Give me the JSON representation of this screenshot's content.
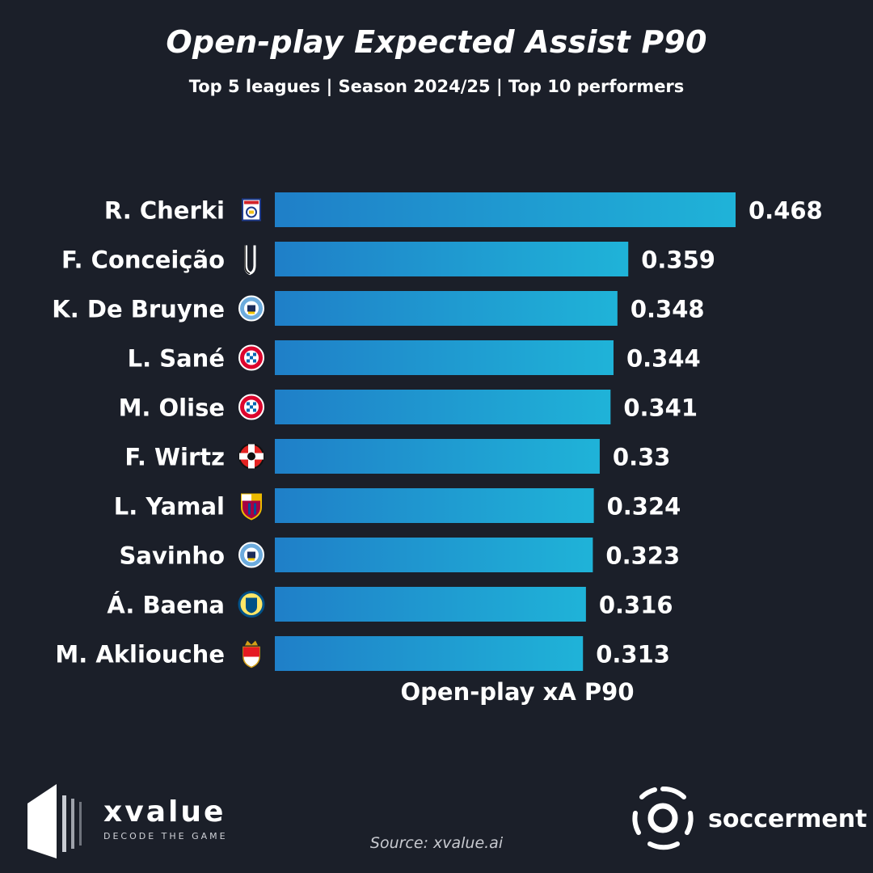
{
  "header": {
    "title": "Open-play Expected Assist P90",
    "subtitle": "Top 5 leagues | Season 2024/25 | Top 10 performers"
  },
  "chart_data": {
    "type": "bar",
    "orientation": "horizontal",
    "title": "Open-play Expected Assist P90",
    "subtitle": "Top 5 leagues | Season 2024/25 | Top 10 performers",
    "xlabel": "Open-play xA P90",
    "ylabel": "",
    "xlim": [
      0,
      0.468
    ],
    "grid": false,
    "categories": [
      "R. Cherki",
      "F. Conceição",
      "K. De Bruyne",
      "L. Sané",
      "M. Olise",
      "F. Wirtz",
      "L. Yamal",
      "Savinho",
      "Á. Baena",
      "M. Akliouche"
    ],
    "values": [
      0.468,
      0.359,
      0.348,
      0.344,
      0.341,
      0.33,
      0.324,
      0.323,
      0.316,
      0.313
    ],
    "value_labels": [
      "0.468",
      "0.359",
      "0.348",
      "0.344",
      "0.341",
      "0.33",
      "0.324",
      "0.323",
      "0.316",
      "0.313"
    ],
    "club_icons": [
      "lyon-crest-icon",
      "juventus-crest-icon",
      "man-city-crest-icon",
      "bayern-crest-icon",
      "bayern-crest-icon",
      "leverkusen-crest-icon",
      "barcelona-crest-icon",
      "man-city-crest-icon",
      "villarreal-crest-icon",
      "monaco-crest-icon"
    ],
    "bar_colors": [
      "#1f7fc8",
      "#1fb3d8"
    ]
  },
  "footer": {
    "source": "Source: xvalue.ai",
    "brand_left_name": "xvalue",
    "brand_left_tagline": "DECODE THE GAME",
    "brand_right_name": "soccerment"
  },
  "colors": {
    "background": "#1b1f29",
    "text": "#ffffff",
    "bar_start": "#1f7fc8",
    "bar_end": "#1fb3d8"
  }
}
